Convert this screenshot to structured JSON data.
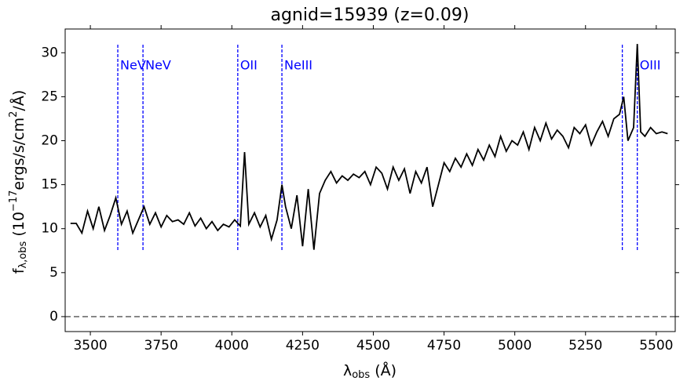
{
  "chart_data": {
    "type": "line",
    "title": "agnid=15939 (z=0.09)",
    "x_label": {
      "main": "λ",
      "sub": "obs",
      "rest": " (Å)"
    },
    "y_label": {
      "main": "f",
      "sub": "λ,obs",
      "rest": " (10",
      "sup1": "−17",
      "mid": "ergs/s/cm",
      "sup2": "2",
      "end": "/Å)"
    },
    "x": [
      3430,
      3450,
      3470,
      3490,
      3510,
      3530,
      3550,
      3570,
      3590,
      3610,
      3630,
      3650,
      3670,
      3690,
      3710,
      3730,
      3750,
      3770,
      3790,
      3810,
      3830,
      3850,
      3870,
      3890,
      3910,
      3930,
      3950,
      3970,
      3990,
      4010,
      4030,
      4045,
      4060,
      4080,
      4100,
      4120,
      4140,
      4160,
      4177,
      4190,
      4210,
      4230,
      4250,
      4270,
      4290,
      4310,
      4330,
      4350,
      4370,
      4390,
      4410,
      4430,
      4450,
      4470,
      4490,
      4510,
      4530,
      4550,
      4570,
      4590,
      4610,
      4630,
      4650,
      4670,
      4690,
      4710,
      4730,
      4750,
      4770,
      4790,
      4810,
      4830,
      4850,
      4870,
      4890,
      4910,
      4930,
      4950,
      4970,
      4990,
      5010,
      5030,
      5050,
      5070,
      5090,
      5110,
      5130,
      5150,
      5170,
      5190,
      5210,
      5230,
      5250,
      5270,
      5290,
      5310,
      5330,
      5350,
      5370,
      5385,
      5400,
      5420,
      5433,
      5445,
      5460,
      5480,
      5500,
      5520,
      5540
    ],
    "series": [
      {
        "color": "#000000",
        "values": [
          10.6,
          10.6,
          9.5,
          12,
          10,
          12.5,
          9.8,
          11.5,
          13.5,
          10.5,
          12,
          9.5,
          11,
          12.5,
          10.5,
          11.8,
          10.2,
          11.5,
          10.8,
          11,
          10.5,
          11.8,
          10.3,
          11.2,
          10,
          10.8,
          9.8,
          10.5,
          10.2,
          11,
          10.3,
          18.7,
          10.5,
          11.8,
          10.2,
          11.5,
          8.8,
          11,
          15,
          12.5,
          10,
          13.8,
          8,
          14.5,
          7.6,
          14,
          15.5,
          16.5,
          15.2,
          16,
          15.5,
          16.2,
          15.8,
          16.5,
          15,
          17,
          16.3,
          14.5,
          17,
          15.5,
          16.8,
          14,
          16.5,
          15.2,
          17,
          12.5,
          15,
          17.5,
          16.5,
          18,
          17,
          18.5,
          17.2,
          19,
          17.8,
          19.5,
          18.2,
          20.5,
          18.8,
          20,
          19.5,
          21,
          19,
          21.5,
          20,
          22,
          20.2,
          21.2,
          20.5,
          19.2,
          21.5,
          20.8,
          21.8,
          19.5,
          21,
          22.2,
          20.5,
          22.5,
          23,
          25,
          20,
          21.5,
          31,
          21,
          20.5,
          21.5,
          20.8,
          21,
          20.8
        ]
      }
    ],
    "emission_lines": {
      "color": "#0000ff",
      "x": [
        3597,
        3686,
        4021,
        4177,
        5380,
        5433
      ],
      "labels": [
        "NeV",
        "NeV",
        "OII",
        "NeIII",
        null,
        "OIII"
      ]
    },
    "reference_line": {
      "y": 0,
      "color": "#808080"
    },
    "xlim": [
      3411,
      5567
    ],
    "ylim": [
      -1.7,
      32.7
    ],
    "xticks": [
      3500,
      3750,
      4000,
      4250,
      4500,
      4750,
      5000,
      5250,
      5500
    ],
    "yticks": [
      0,
      5,
      10,
      15,
      20,
      25,
      30
    ]
  }
}
